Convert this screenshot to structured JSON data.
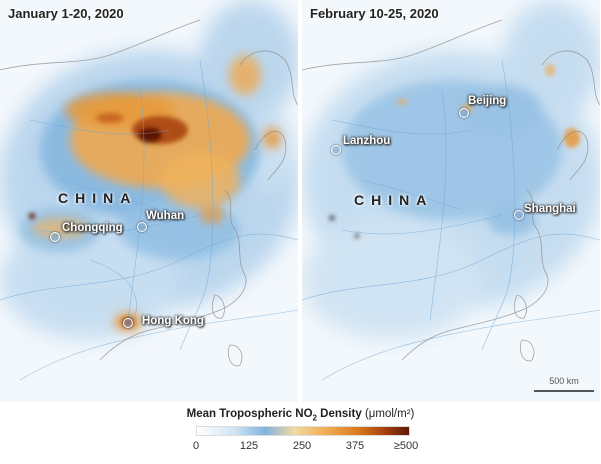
{
  "panels": [
    {
      "title": "January 1-20, 2020",
      "country_label": "CHINA",
      "cities": [
        "Chongqing",
        "Wuhan",
        "Hong Kong"
      ]
    },
    {
      "title": "February 10-25, 2020",
      "country_label": "CHINA",
      "cities": [
        "Lanzhou",
        "Beijing",
        "Shanghai"
      ]
    }
  ],
  "scale_bar": "500 km",
  "legend": {
    "title_prefix": "Mean Tropospheric NO",
    "title_subscript": "2",
    "title_suffix": " Density",
    "unit": "(μmol/m²)",
    "ticks": [
      "0",
      "125",
      "250",
      "375",
      "≥500"
    ]
  },
  "colors": {
    "low": "#ffffff",
    "mid": "#7fb3de",
    "high_orange": "#efa950",
    "max": "#5e1906"
  }
}
